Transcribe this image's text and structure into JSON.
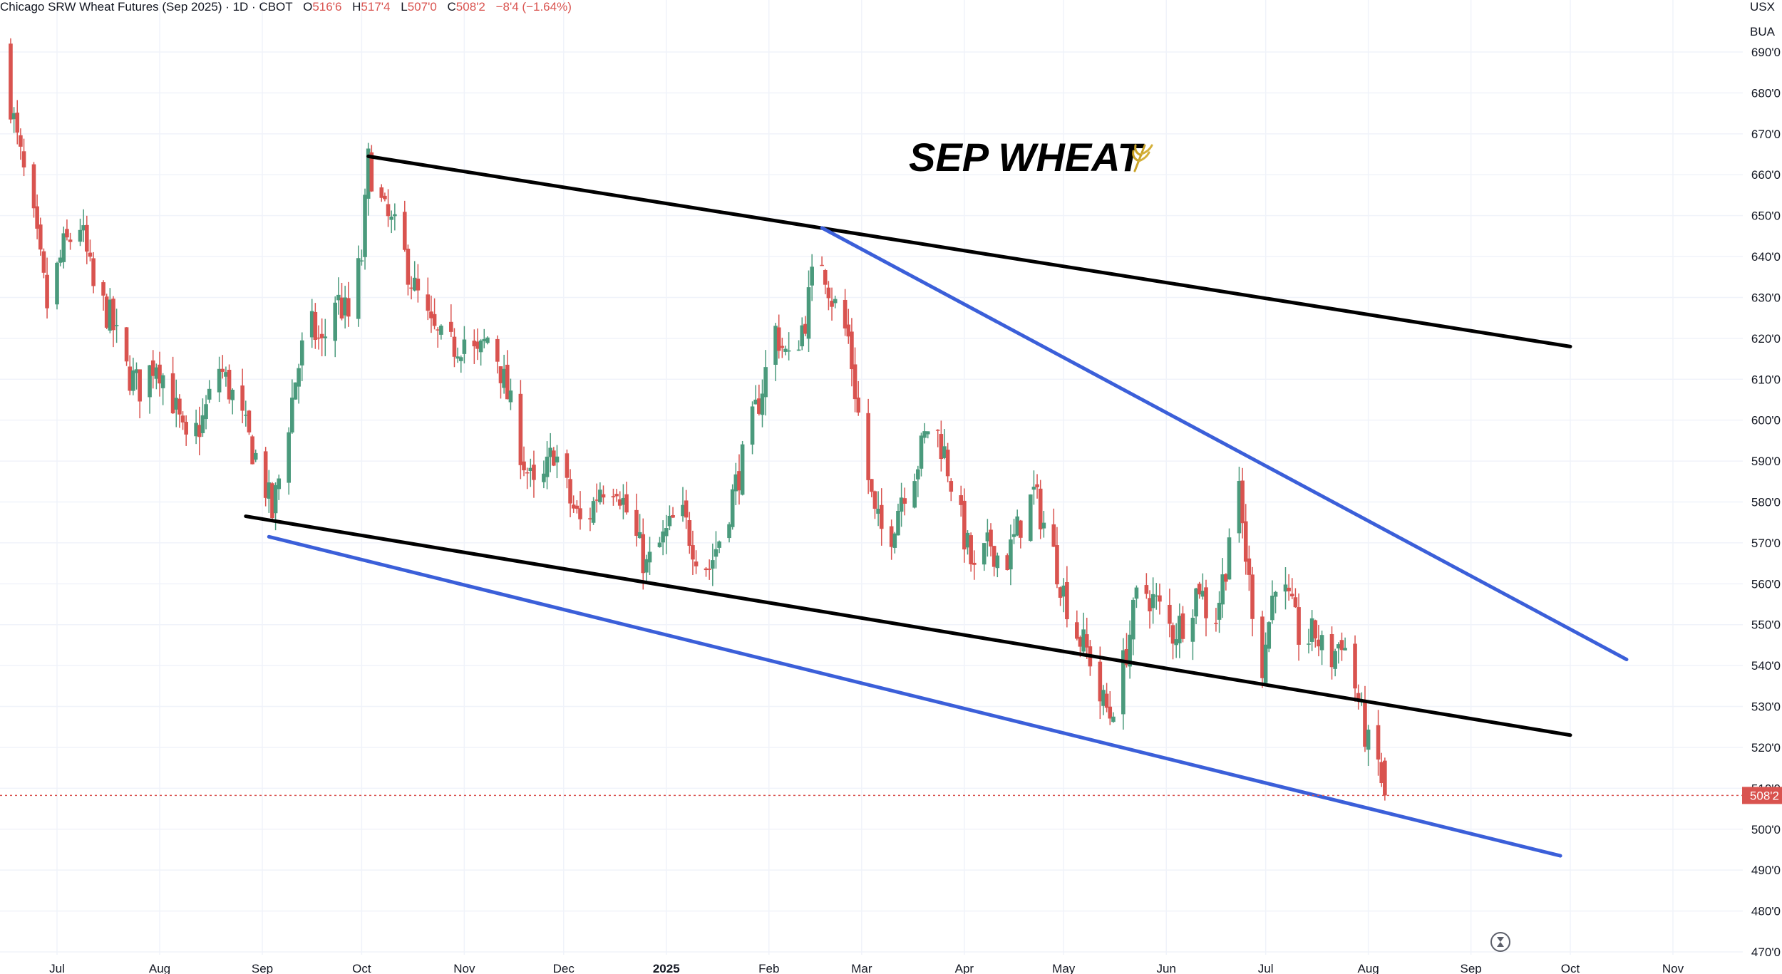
{
  "header": {
    "symbol_text": "Chicago SRW Wheat Futures (Sep 2025) · 1D · CBOT",
    "o_label": "O",
    "o_value": "516'6",
    "h_label": "H",
    "h_value": "517'4",
    "l_label": "L",
    "l_value": "507'0",
    "c_label": "C",
    "c_value": "508'2",
    "change": "−8'4 (−1.64%)"
  },
  "currency_top": "USX",
  "currency_bottom": "BUA",
  "annotation": {
    "title": "SEP WHEAT",
    "icon": "wheat-icon"
  },
  "last_price_label": "508'2",
  "countdown_icon": "hourglass-icon",
  "colors": {
    "up": "#4a9a7c",
    "down": "#d9534f",
    "trend_black": "#000000",
    "trend_blue": "#3b5fd9",
    "grid": "#f0f3fa"
  },
  "chart_data": {
    "type": "candlestick",
    "title": "Chicago SRW Wheat Futures (Sep 2025)",
    "ylim": [
      468,
      695
    ],
    "x_range": [
      "2024-06-15",
      "2025-11-15"
    ],
    "y_ticks": [
      "690'0",
      "680'0",
      "670'0",
      "660'0",
      "650'0",
      "640'0",
      "630'0",
      "620'0",
      "610'0",
      "600'0",
      "590'0",
      "580'0",
      "570'0",
      "560'0",
      "550'0",
      "540'0",
      "530'0",
      "520'0",
      "510'0",
      "500'0",
      "490'0",
      "480'0",
      "470'0"
    ],
    "x_ticks": [
      {
        "label": "Jul",
        "date": "2024-07-01"
      },
      {
        "label": "Aug",
        "date": "2024-08-01"
      },
      {
        "label": "Sep",
        "date": "2024-09-01"
      },
      {
        "label": "Oct",
        "date": "2024-10-01"
      },
      {
        "label": "Nov",
        "date": "2024-11-01"
      },
      {
        "label": "Dec",
        "date": "2024-12-01"
      },
      {
        "label": "2025",
        "date": "2025-01-01",
        "bold": true
      },
      {
        "label": "Feb",
        "date": "2025-02-01"
      },
      {
        "label": "Mar",
        "date": "2025-03-01"
      },
      {
        "label": "Apr",
        "date": "2025-04-01"
      },
      {
        "label": "May",
        "date": "2025-05-01"
      },
      {
        "label": "Jun",
        "date": "2025-06-01"
      },
      {
        "label": "Jul",
        "date": "2025-07-01"
      },
      {
        "label": "Aug",
        "date": "2025-08-01"
      },
      {
        "label": "Sep",
        "date": "2025-09-01"
      },
      {
        "label": "Oct",
        "date": "2025-10-01"
      },
      {
        "label": "Nov",
        "date": "2025-11-01"
      }
    ],
    "price_path": [
      [
        "2024-06-15",
        688
      ],
      [
        "2024-06-19",
        668
      ],
      [
        "2024-06-24",
        648
      ],
      [
        "2024-06-28",
        628
      ],
      [
        "2024-07-03",
        642
      ],
      [
        "2024-07-08",
        648
      ],
      [
        "2024-07-12",
        632
      ],
      [
        "2024-07-17",
        625
      ],
      [
        "2024-07-22",
        612
      ],
      [
        "2024-07-26",
        608
      ],
      [
        "2024-07-31",
        615
      ],
      [
        "2024-08-05",
        605
      ],
      [
        "2024-08-09",
        593
      ],
      [
        "2024-08-14",
        600
      ],
      [
        "2024-08-19",
        613
      ],
      [
        "2024-08-23",
        606
      ],
      [
        "2024-08-28",
        595
      ],
      [
        "2024-09-01",
        587
      ],
      [
        "2024-09-04",
        577
      ],
      [
        "2024-09-07",
        590
      ],
      [
        "2024-09-11",
        610
      ],
      [
        "2024-09-15",
        624
      ],
      [
        "2024-09-19",
        618
      ],
      [
        "2024-09-23",
        630
      ],
      [
        "2024-09-27",
        625
      ],
      [
        "2024-10-01",
        640
      ],
      [
        "2024-10-03",
        663
      ],
      [
        "2024-10-08",
        650
      ],
      [
        "2024-10-12",
        645
      ],
      [
        "2024-10-17",
        632
      ],
      [
        "2024-10-22",
        622
      ],
      [
        "2024-10-27",
        617
      ],
      [
        "2024-11-01",
        620
      ],
      [
        "2024-11-05",
        615
      ],
      [
        "2024-11-09",
        622
      ],
      [
        "2024-11-14",
        606
      ],
      [
        "2024-11-19",
        590
      ],
      [
        "2024-11-23",
        580
      ],
      [
        "2024-11-28",
        593
      ],
      [
        "2024-12-03",
        580
      ],
      [
        "2024-12-07",
        573
      ],
      [
        "2024-12-12",
        584
      ],
      [
        "2024-12-17",
        585
      ],
      [
        "2024-12-21",
        575
      ],
      [
        "2024-12-26",
        564
      ],
      [
        "2025-01-01",
        572
      ],
      [
        "2025-01-05",
        578
      ],
      [
        "2025-01-10",
        568
      ],
      [
        "2025-01-14",
        564
      ],
      [
        "2025-01-19",
        576
      ],
      [
        "2025-01-24",
        590
      ],
      [
        "2025-01-29",
        605
      ],
      [
        "2025-02-03",
        622
      ],
      [
        "2025-02-07",
        614
      ],
      [
        "2025-02-12",
        625
      ],
      [
        "2025-02-16",
        643
      ],
      [
        "2025-02-20",
        630
      ],
      [
        "2025-02-25",
        620
      ],
      [
        "2025-03-01",
        595
      ],
      [
        "2025-03-05",
        576
      ],
      [
        "2025-03-09",
        570
      ],
      [
        "2025-03-13",
        582
      ],
      [
        "2025-03-18",
        590
      ],
      [
        "2025-03-22",
        601
      ],
      [
        "2025-03-26",
        592
      ],
      [
        "2025-03-31",
        575
      ],
      [
        "2025-04-04",
        562
      ],
      [
        "2025-04-09",
        570
      ],
      [
        "2025-04-13",
        564
      ],
      [
        "2025-04-18",
        575
      ],
      [
        "2025-04-22",
        582
      ],
      [
        "2025-04-27",
        570
      ],
      [
        "2025-05-01",
        558
      ],
      [
        "2025-05-05",
        548
      ],
      [
        "2025-05-09",
        542
      ],
      [
        "2025-05-12",
        532
      ],
      [
        "2025-05-15",
        528
      ],
      [
        "2025-05-19",
        540
      ],
      [
        "2025-05-24",
        560
      ],
      [
        "2025-05-29",
        555
      ],
      [
        "2025-06-03",
        548
      ],
      [
        "2025-06-07",
        552
      ],
      [
        "2025-06-11",
        560
      ],
      [
        "2025-06-15",
        548
      ],
      [
        "2025-06-19",
        565
      ],
      [
        "2025-06-22",
        588
      ],
      [
        "2025-06-26",
        560
      ],
      [
        "2025-06-30",
        540
      ],
      [
        "2025-07-04",
        562
      ],
      [
        "2025-07-08",
        555
      ],
      [
        "2025-07-12",
        545
      ],
      [
        "2025-07-16",
        548
      ],
      [
        "2025-07-20",
        540
      ],
      [
        "2025-07-24",
        547
      ],
      [
        "2025-07-28",
        535
      ],
      [
        "2025-08-01",
        520
      ],
      [
        "2025-08-04",
        516
      ],
      [
        "2025-08-06",
        508
      ]
    ],
    "last": {
      "open": 516.75,
      "high": 517.5,
      "low": 507,
      "close": 508.25
    },
    "trendlines": [
      {
        "color": "black",
        "from": [
          "2024-10-03",
          664.5
        ],
        "to": [
          "2025-10-01",
          618
        ]
      },
      {
        "color": "black",
        "from": [
          "2024-08-27",
          576.5
        ],
        "to": [
          "2025-10-01",
          523
        ]
      },
      {
        "color": "blue",
        "from": [
          "2025-02-17",
          647
        ],
        "to": [
          "2025-10-18",
          541.5
        ]
      },
      {
        "color": "blue",
        "from": [
          "2024-09-03",
          571.5
        ],
        "to": [
          "2025-09-28",
          493.5
        ]
      }
    ]
  }
}
